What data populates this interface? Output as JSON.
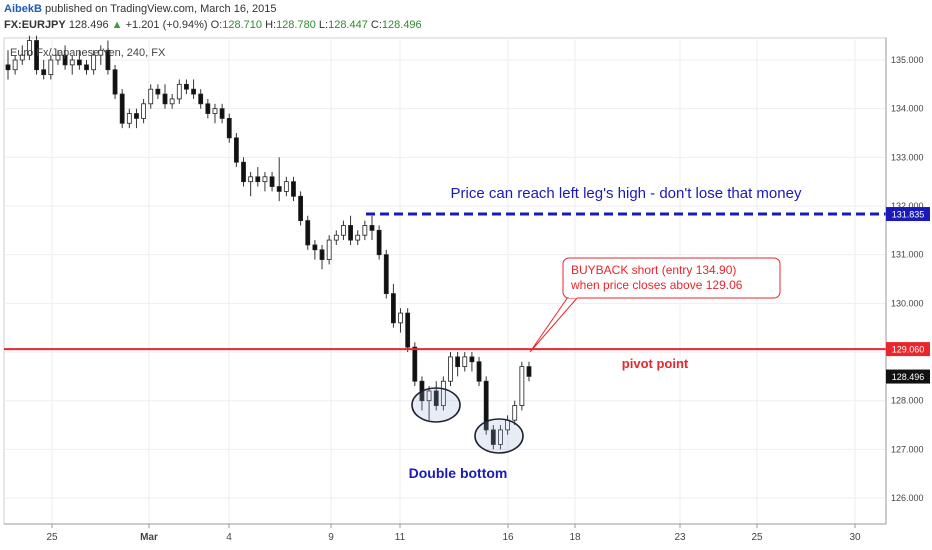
{
  "header": {
    "author": "AibekB",
    "published": "published on TradingView.com, March 16, 2015",
    "symbol": "FX:EURJPY",
    "last": "128.496",
    "change": "+1.201 (+0.94%)",
    "o_label": "O:",
    "o": "128.710",
    "h_label": "H:",
    "h": "128.780",
    "l_label": "L:",
    "l": "128.447",
    "c_label": "C:",
    "c": "128.496"
  },
  "instrument": "Euro Fx/Japanese Yen, 240, FX",
  "colors": {
    "resistance": "#1a1ab8",
    "pivot": "#e8262b",
    "bear": "#111111",
    "bull": "#ffffff",
    "annotation": "#1a1ab8",
    "callout": "#e8262b"
  },
  "chart_data": {
    "type": "candlestick",
    "ylim": [
      125.45,
      135.55
    ],
    "y_ticks": [
      "126.000",
      "127.000",
      "128.000",
      "129.000",
      "130.000",
      "131.000",
      "132.000",
      "133.000",
      "134.000",
      "135.000"
    ],
    "x_ticks": [
      "25",
      "Mar",
      "4",
      "9",
      "11",
      "16",
      "18",
      "23",
      "25",
      "30"
    ],
    "price_labels": {
      "resistance": "131.835",
      "pivot": "129.060",
      "last": "128.496"
    },
    "levels": {
      "resistance": 131.835,
      "pivot": 129.06,
      "last": 128.496
    },
    "candles": [
      [
        134.9,
        135.2,
        134.6,
        134.8
      ],
      [
        134.8,
        135.1,
        134.7,
        135.0
      ],
      [
        135.0,
        135.3,
        134.9,
        135.1
      ],
      [
        135.1,
        135.5,
        135.0,
        135.4
      ],
      [
        135.4,
        135.5,
        134.7,
        134.8
      ],
      [
        134.8,
        135.0,
        134.6,
        134.7
      ],
      [
        134.7,
        135.1,
        134.6,
        135.0
      ],
      [
        135.0,
        135.2,
        134.9,
        135.1
      ],
      [
        135.1,
        135.3,
        134.8,
        134.9
      ],
      [
        134.9,
        135.1,
        134.7,
        135.0
      ],
      [
        135.0,
        135.2,
        134.8,
        134.9
      ],
      [
        134.9,
        135.0,
        134.7,
        134.8
      ],
      [
        134.8,
        135.2,
        134.7,
        135.1
      ],
      [
        135.1,
        135.3,
        134.9,
        135.2
      ],
      [
        135.2,
        135.4,
        134.7,
        134.8
      ],
      [
        134.8,
        134.9,
        134.2,
        134.3
      ],
      [
        134.3,
        134.4,
        133.6,
        133.7
      ],
      [
        133.7,
        134.0,
        133.6,
        133.9
      ],
      [
        133.9,
        134.0,
        133.6,
        133.8
      ],
      [
        133.8,
        134.2,
        133.7,
        134.1
      ],
      [
        134.1,
        134.5,
        134.0,
        134.4
      ],
      [
        134.4,
        134.5,
        134.2,
        134.3
      ],
      [
        134.3,
        134.5,
        134.0,
        134.1
      ],
      [
        134.1,
        134.3,
        134.0,
        134.2
      ],
      [
        134.2,
        134.6,
        134.1,
        134.5
      ],
      [
        134.5,
        134.6,
        134.3,
        134.4
      ],
      [
        134.4,
        134.6,
        134.2,
        134.3
      ],
      [
        134.3,
        134.4,
        134.0,
        134.1
      ],
      [
        134.1,
        134.2,
        133.8,
        133.9
      ],
      [
        133.9,
        134.1,
        133.7,
        134.0
      ],
      [
        134.0,
        134.1,
        133.7,
        133.8
      ],
      [
        133.8,
        133.9,
        133.3,
        133.4
      ],
      [
        133.4,
        133.5,
        132.8,
        132.9
      ],
      [
        132.9,
        133.0,
        132.4,
        132.5
      ],
      [
        132.5,
        132.7,
        132.2,
        132.6
      ],
      [
        132.6,
        132.8,
        132.4,
        132.5
      ],
      [
        132.5,
        132.7,
        132.3,
        132.6
      ],
      [
        132.6,
        132.7,
        132.3,
        132.4
      ],
      [
        132.4,
        133.0,
        132.1,
        132.3
      ],
      [
        132.3,
        132.6,
        132.2,
        132.5
      ],
      [
        132.5,
        132.6,
        132.1,
        132.2
      ],
      [
        132.2,
        132.3,
        131.6,
        131.7
      ],
      [
        131.7,
        131.8,
        131.1,
        131.2
      ],
      [
        131.2,
        131.3,
        130.9,
        131.1
      ],
      [
        131.1,
        131.2,
        130.7,
        130.9
      ],
      [
        130.9,
        131.4,
        130.8,
        131.3
      ],
      [
        131.3,
        131.5,
        131.2,
        131.4
      ],
      [
        131.4,
        131.7,
        131.3,
        131.6
      ],
      [
        131.6,
        131.8,
        131.2,
        131.3
      ],
      [
        131.3,
        131.5,
        131.2,
        131.4
      ],
      [
        131.4,
        131.7,
        131.3,
        131.6
      ],
      [
        131.6,
        131.8,
        131.3,
        131.5
      ],
      [
        131.5,
        131.6,
        130.9,
        131.0
      ],
      [
        131.0,
        131.1,
        130.1,
        130.2
      ],
      [
        130.2,
        130.4,
        129.5,
        129.6
      ],
      [
        129.6,
        129.9,
        129.4,
        129.8
      ],
      [
        129.8,
        129.9,
        129.0,
        129.1
      ],
      [
        129.1,
        129.2,
        128.3,
        128.4
      ],
      [
        128.4,
        128.5,
        127.8,
        128.0
      ],
      [
        128.0,
        128.3,
        127.6,
        128.2
      ],
      [
        128.2,
        128.4,
        127.8,
        127.9
      ],
      [
        127.9,
        128.5,
        127.8,
        128.4
      ],
      [
        128.4,
        129.0,
        128.3,
        128.9
      ],
      [
        128.9,
        129.0,
        128.5,
        128.7
      ],
      [
        128.7,
        129.0,
        128.6,
        128.9
      ],
      [
        128.9,
        129.0,
        128.6,
        128.8
      ],
      [
        128.8,
        128.9,
        128.3,
        128.4
      ],
      [
        128.4,
        128.5,
        127.3,
        127.4
      ],
      [
        127.4,
        127.5,
        127.0,
        127.1
      ],
      [
        127.1,
        127.5,
        127.0,
        127.4
      ],
      [
        127.4,
        127.7,
        127.3,
        127.6
      ],
      [
        127.6,
        128.0,
        127.5,
        127.9
      ],
      [
        127.9,
        128.8,
        127.8,
        128.7
      ],
      [
        128.7,
        128.8,
        128.4,
        128.5
      ]
    ]
  },
  "annotations": {
    "resistance_note": "Price can reach left leg's high - don't lose that money",
    "callout_line1": "BUYBACK short (entry 134.90)",
    "callout_line2": "when price closes above 129.06",
    "pivot_label": "pivot point",
    "double_bottom": "Double bottom"
  }
}
